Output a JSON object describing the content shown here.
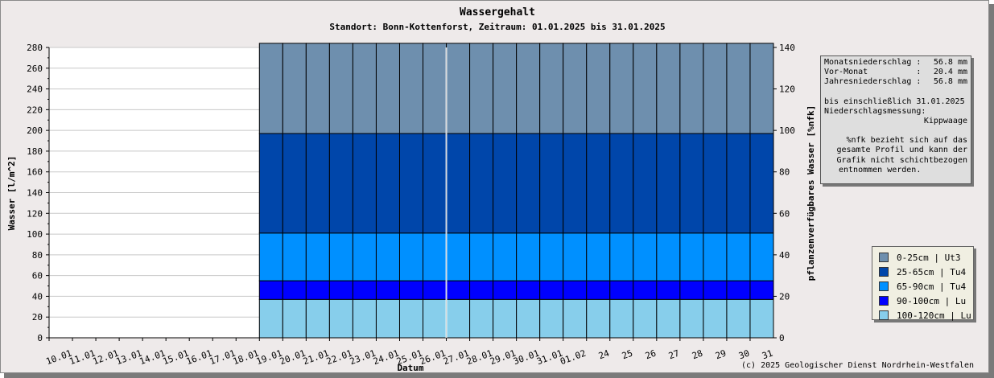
{
  "chart_data": {
    "type": "bar",
    "title": "Wassergehalt",
    "subtitle": "Standort: Bonn-Kottenforst, Zeitraum: 01.01.2025 bis 31.01.2025",
    "xlabel": "Datum",
    "ylabel": "Wasser [l/m^2]",
    "y2label": "pflanzenverfügbares Wasser [%nfk]",
    "ylim": [
      0,
      280
    ],
    "y2lim": [
      0,
      140
    ],
    "yticks": [
      0,
      20,
      40,
      60,
      80,
      100,
      120,
      140,
      160,
      180,
      200,
      220,
      240,
      260,
      280
    ],
    "y2ticks": [
      0,
      20,
      40,
      60,
      80,
      100,
      120,
      140
    ],
    "categories": [
      "10.01",
      "11.01",
      "12.01",
      "13.01",
      "14.01",
      "15.01",
      "16.01",
      "17.01",
      "18.01",
      "19.01",
      "20.01",
      "21.01",
      "22.01",
      "23.01",
      "24.01",
      "25.01",
      "26.01",
      "27.01",
      "28.01",
      "29.01",
      "30.01",
      "31.01",
      "01.02",
      "24",
      "25",
      "26",
      "27",
      "28",
      "29",
      "30",
      "31"
    ],
    "stacked": true,
    "series": [
      {
        "name": "100-120cm | Lu",
        "color": "#87ceeb",
        "values": [
          null,
          null,
          null,
          null,
          null,
          null,
          null,
          null,
          null,
          37,
          37,
          37,
          37,
          37,
          37,
          37,
          37,
          37,
          37,
          37,
          37,
          37,
          37,
          37,
          37,
          37,
          37,
          37,
          37,
          37,
          37
        ]
      },
      {
        "name": "90-100cm | Lu",
        "color": "#0000ff",
        "values": [
          null,
          null,
          null,
          null,
          null,
          null,
          null,
          null,
          null,
          18,
          18,
          18,
          18,
          18,
          18,
          18,
          18,
          18,
          18,
          18,
          18,
          18,
          18,
          18,
          18,
          18,
          18,
          18,
          18,
          18,
          18
        ]
      },
      {
        "name": "65-90cm | Tu4",
        "color": "#0090ff",
        "values": [
          null,
          null,
          null,
          null,
          null,
          null,
          null,
          null,
          null,
          46,
          46,
          46,
          46,
          46,
          46,
          46,
          46,
          46,
          46,
          46,
          46,
          46,
          46,
          46,
          46,
          46,
          46,
          46,
          46,
          46,
          46
        ]
      },
      {
        "name": "25-65cm | Tu4",
        "color": "#0046aa",
        "values": [
          null,
          null,
          null,
          null,
          null,
          null,
          null,
          null,
          null,
          96,
          96,
          96,
          96,
          96,
          96,
          96,
          96,
          96,
          96,
          96,
          96,
          96,
          96,
          96,
          96,
          96,
          96,
          96,
          96,
          96,
          96
        ]
      },
      {
        "name": "0-25cm | Ut3",
        "color": "#6e8fae",
        "values": [
          null,
          null,
          null,
          null,
          null,
          null,
          null,
          null,
          null,
          87,
          87,
          87,
          87,
          87,
          87,
          87,
          87,
          87,
          87,
          87,
          87,
          87,
          87,
          87,
          87,
          87,
          87,
          87,
          87,
          87,
          87
        ]
      }
    ],
    "legend": "right",
    "grid": true
  },
  "info": {
    "monthly_label": "Monatsniederschlag :",
    "monthly_value": "56.8 mm",
    "prev_label": "Vor-Monat          :",
    "prev_value": "20.4 mm",
    "year_label": "Jahresniederschlag :",
    "year_value": "56.8 mm",
    "until": "bis einschließlich 31.01.2025",
    "measure_label": "Niederschlagsmessung:",
    "measure_value": "Kippwaage",
    "note_1": "%nfk bezieht sich auf das",
    "note_2": "gesamte Profil und kann der",
    "note_3": "Grafik nicht schichtbezogen",
    "note_4": "entnommen werden."
  },
  "copyright": "(c) 2025 Geologischer Dienst Nordrhein-Westfalen"
}
